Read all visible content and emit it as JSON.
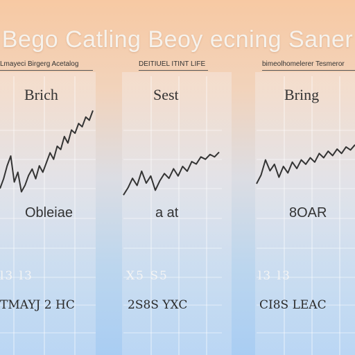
{
  "header": {
    "title": "Bego Catling Beoy ecning Saner"
  },
  "panels": [
    {
      "header": "Lmayeci Birgerg Acetalog",
      "title": "Brich",
      "label": "Obleiae",
      "tick_row": "l3  l3",
      "bottom_row": "TMAYJ 2 HC"
    },
    {
      "header": "DEITIUEL ITINT LIFE",
      "title": "Sest",
      "label": "a  at",
      "tick_row": "X5  S5",
      "bottom_row": "2S8S  YXC"
    },
    {
      "header": "bimeolhomelerer Tesmeror",
      "title": "Bring",
      "label": "8OAR",
      "tick_row": "l3  l3",
      "bottom_row": "CI8S  LEAC"
    }
  ],
  "chart_data": [
    {
      "type": "line",
      "title": "Brich",
      "series": [
        {
          "values": [
            30,
            45,
            65,
            80,
            40,
            55,
            25,
            35,
            50,
            60,
            45,
            65,
            55,
            70,
            85,
            75,
            95,
            90,
            110,
            100,
            120,
            115,
            130,
            125,
            140,
            135,
            150
          ]
        }
      ],
      "ylim": [
        0,
        160
      ]
    },
    {
      "type": "line",
      "title": "Sest",
      "series": [
        {
          "values": [
            20,
            35,
            55,
            40,
            70,
            45,
            60,
            30,
            50,
            65,
            55,
            75,
            60,
            80,
            70,
            90,
            85,
            100,
            95,
            105,
            100,
            110
          ]
        }
      ],
      "ylim": [
        0,
        160
      ]
    },
    {
      "type": "line",
      "title": "Bring",
      "series": [
        {
          "values": [
            40,
            60,
            95,
            70,
            85,
            55,
            80,
            65,
            90,
            75,
            95,
            85,
            100,
            90,
            110,
            100,
            115,
            105,
            120,
            110,
            125,
            118,
            130
          ]
        }
      ],
      "ylim": [
        0,
        160
      ]
    }
  ]
}
